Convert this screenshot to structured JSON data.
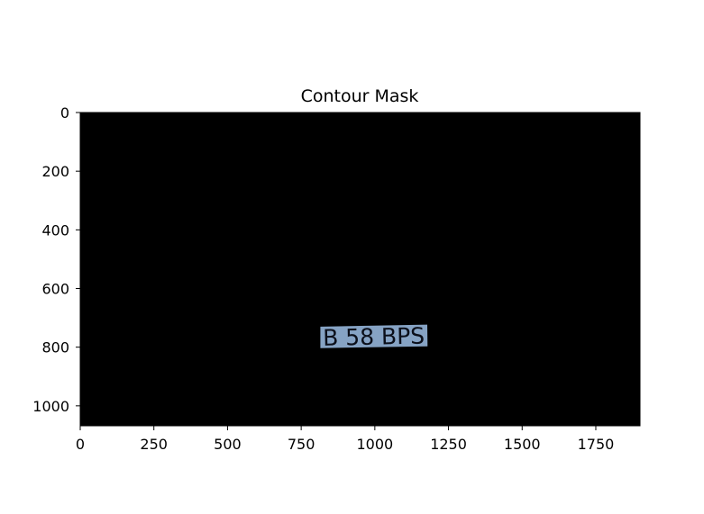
{
  "chart_data": {
    "type": "heatmap",
    "title": "Contour Mask",
    "xlabel": "",
    "ylabel": "",
    "xlim": [
      0,
      1900
    ],
    "ylim": [
      1068,
      0
    ],
    "x_ticks": [
      0,
      250,
      500,
      750,
      1000,
      1250,
      1500,
      1750
    ],
    "y_ticks": [
      0,
      200,
      400,
      600,
      800,
      1000
    ],
    "x_tick_labels": [
      "0",
      "250",
      "500",
      "750",
      "1000",
      "1250",
      "1500",
      "1750"
    ],
    "y_tick_labels": [
      "0",
      "200",
      "400",
      "600",
      "800",
      "1000"
    ],
    "grid": false,
    "background_color": "#000000",
    "masked_region": {
      "corners": [
        [
          815,
          730
        ],
        [
          1178,
          723
        ],
        [
          1179,
          797
        ],
        [
          815,
          803
        ]
      ],
      "fill_color": "#86a3c4",
      "text": "B 58 BPS"
    }
  }
}
